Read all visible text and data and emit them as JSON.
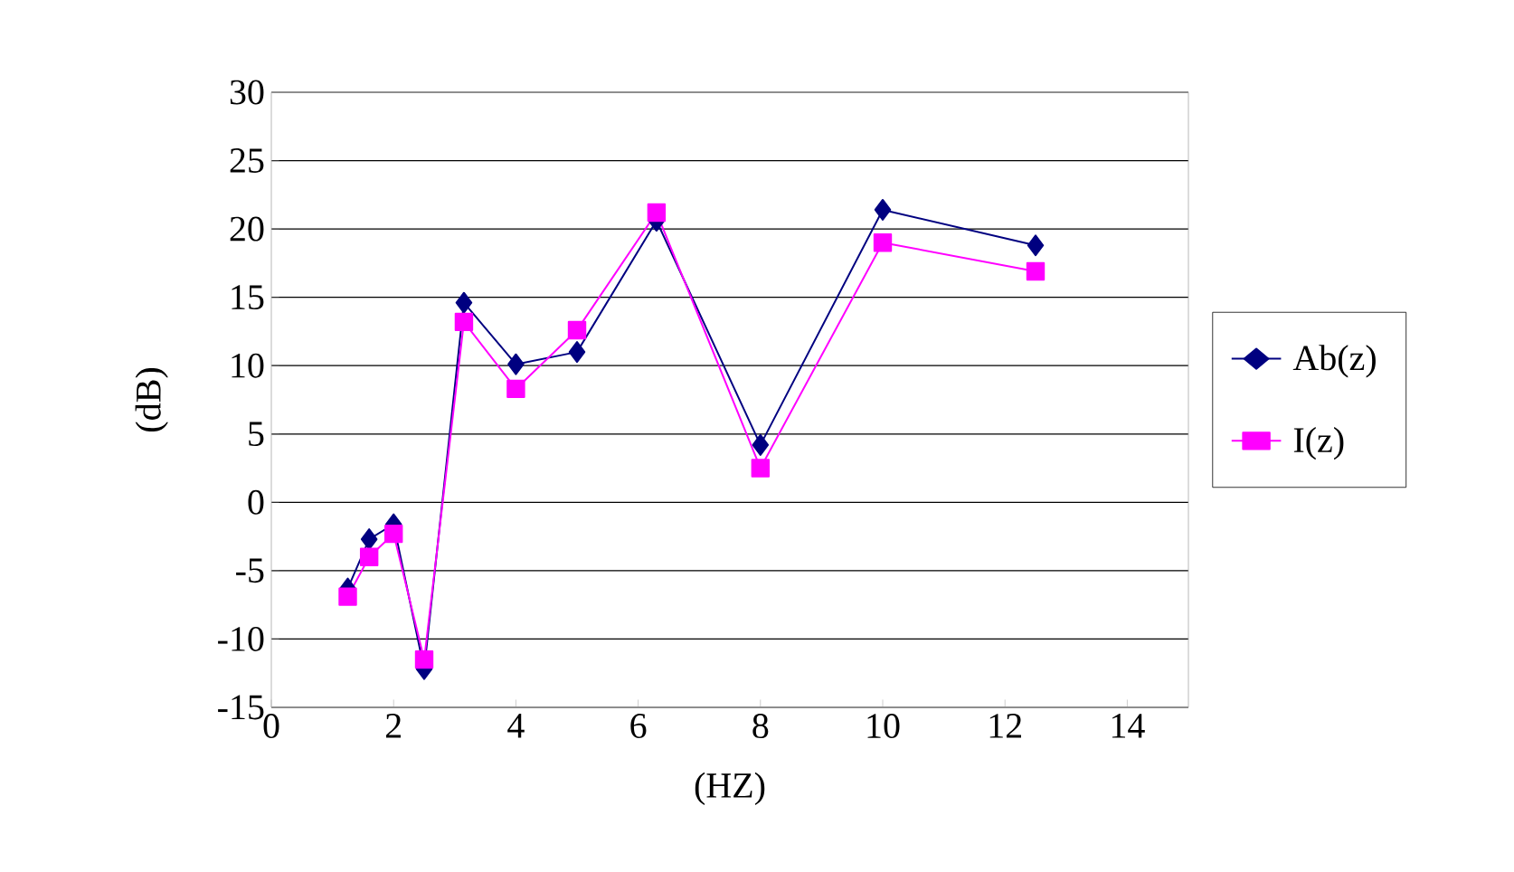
{
  "chart_data": {
    "type": "line",
    "xlabel": "(HZ)",
    "ylabel": "(dB)",
    "xlim": [
      0,
      15
    ],
    "xticks": [
      0,
      2,
      4,
      6,
      8,
      10,
      12,
      14
    ],
    "ylim": [
      -15,
      30
    ],
    "yticks": [
      -15,
      -10,
      -5,
      0,
      5,
      10,
      15,
      20,
      25,
      30
    ],
    "grid": "y",
    "legend": "right",
    "series": [
      {
        "name": "Ab(z)",
        "color": "#000080",
        "marker": "diamond",
        "x": [
          1.25,
          1.6,
          2.0,
          2.5,
          3.15,
          4.0,
          5.0,
          6.3,
          8.0,
          10.0,
          12.5
        ],
        "values": [
          -6.3,
          -2.7,
          -1.6,
          -12.2,
          14.6,
          10.1,
          11.0,
          20.6,
          4.2,
          21.4,
          18.8
        ]
      },
      {
        "name": "I(z)",
        "color": "#ff00ff",
        "marker": "square",
        "x": [
          1.25,
          1.6,
          2.0,
          2.5,
          3.15,
          4.0,
          5.0,
          6.3,
          8.0,
          10.0,
          12.5
        ],
        "values": [
          -6.9,
          -4.0,
          -2.3,
          -11.5,
          13.2,
          8.3,
          12.6,
          21.2,
          2.5,
          19.0,
          16.9
        ]
      }
    ]
  }
}
